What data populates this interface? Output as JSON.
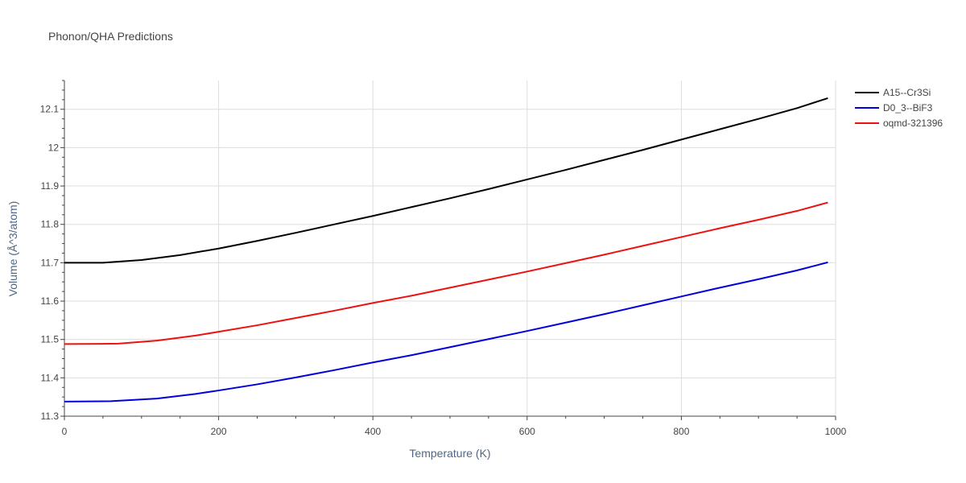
{
  "chart_data": {
    "type": "line",
    "title": "Phonon/QHA Predictions",
    "xlabel": "Temperature (K)",
    "ylabel": "Volume (Å^3/atom)",
    "xlim": [
      0,
      1000
    ],
    "ylim": [
      11.3,
      12.175
    ],
    "xticks": [
      0,
      200,
      400,
      600,
      800,
      1000
    ],
    "yticks": [
      11.3,
      11.4,
      11.5,
      11.6,
      11.7,
      11.8,
      11.9,
      12.0,
      12.1
    ],
    "ytick_labels": [
      "11.3",
      "11.4",
      "11.5",
      "11.6",
      "11.7",
      "11.8",
      "11.9",
      "12",
      "12.1"
    ],
    "grid": true,
    "legend_position": "top-right",
    "series": [
      {
        "name": "A15--Cr3Si",
        "color": "#000000",
        "x": [
          0,
          50,
          100,
          150,
          200,
          250,
          300,
          350,
          400,
          450,
          500,
          550,
          600,
          650,
          700,
          750,
          800,
          850,
          900,
          950,
          990
        ],
        "y": [
          11.7,
          11.7,
          11.707,
          11.72,
          11.737,
          11.757,
          11.778,
          11.8,
          11.822,
          11.845,
          11.868,
          11.892,
          11.917,
          11.942,
          11.968,
          11.994,
          12.021,
          12.048,
          12.075,
          12.103,
          12.129
        ]
      },
      {
        "name": "D0_3--BiF3",
        "color": "#0000dd",
        "x": [
          0,
          60,
          120,
          170,
          200,
          250,
          300,
          350,
          400,
          450,
          500,
          550,
          600,
          650,
          700,
          750,
          800,
          850,
          900,
          950,
          990
        ],
        "y": [
          11.338,
          11.339,
          11.346,
          11.358,
          11.367,
          11.383,
          11.401,
          11.42,
          11.44,
          11.459,
          11.48,
          11.501,
          11.522,
          11.544,
          11.566,
          11.589,
          11.612,
          11.635,
          11.657,
          11.68,
          11.701
        ]
      },
      {
        "name": "oqmd-321396",
        "color": "#ee1111",
        "x": [
          0,
          70,
          120,
          170,
          200,
          250,
          300,
          350,
          400,
          450,
          500,
          550,
          600,
          650,
          700,
          750,
          800,
          850,
          900,
          950,
          990
        ],
        "y": [
          11.488,
          11.489,
          11.497,
          11.51,
          11.52,
          11.537,
          11.556,
          11.575,
          11.595,
          11.614,
          11.635,
          11.656,
          11.677,
          11.699,
          11.721,
          11.744,
          11.767,
          11.79,
          11.812,
          11.835,
          11.857
        ]
      }
    ]
  }
}
